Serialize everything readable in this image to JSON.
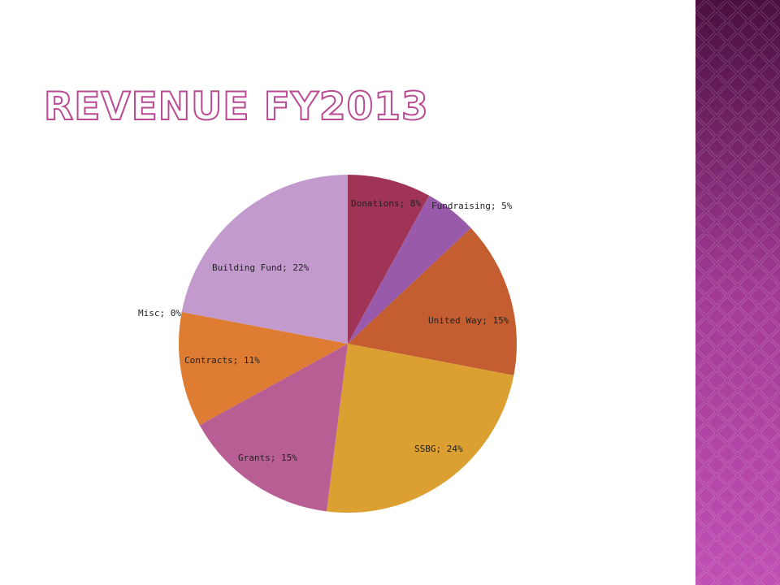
{
  "slide": {
    "title": "REVENUE FY2013",
    "accent_color": "#b94a93",
    "side_band_colors": [
      "#4a0f3f",
      "#a23a95",
      "#c04fb4"
    ]
  },
  "chart_data": {
    "type": "pie",
    "title": "",
    "slices": [
      {
        "label": "Donations",
        "value": 8,
        "display": "Donations;  8%",
        "color": "#a03456"
      },
      {
        "label": "Fundraising",
        "value": 5,
        "display": "Fundraising;  5%",
        "color": "#995aab"
      },
      {
        "label": "United Way",
        "value": 15,
        "display": "United  Way; 15%",
        "color": "#c45e31"
      },
      {
        "label": "SSBG",
        "value": 24,
        "display": "SSBG; 24%",
        "color": "#dca032"
      },
      {
        "label": "Grants",
        "value": 15,
        "display": "Grants; 15%",
        "color": "#b85e94"
      },
      {
        "label": "Contracts",
        "value": 11,
        "display": "Contracts;  11%",
        "color": "#de7c33"
      },
      {
        "label": "Misc",
        "value": 0,
        "display": "Misc;  0%",
        "color": "#9a6fb0"
      },
      {
        "label": "Building Fund",
        "value": 22,
        "display": "Building  Fund; 22%",
        "color": "#c29ace"
      }
    ]
  }
}
